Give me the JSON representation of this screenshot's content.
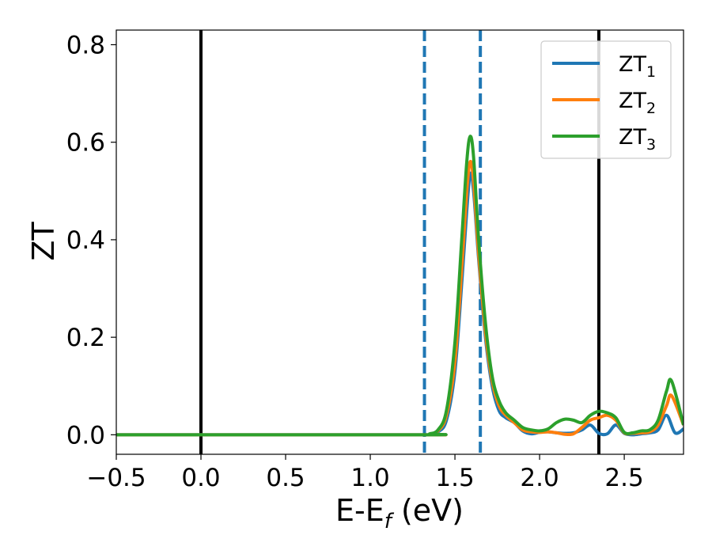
{
  "chart_data": {
    "type": "line",
    "xlabel": "E-E",
    "xlabel_sub": "f",
    "xlabel_unit": " (eV)",
    "ylabel": "ZT",
    "xlim": [
      -0.5,
      2.85
    ],
    "ylim": [
      -0.04,
      0.83
    ],
    "xticks": [
      -0.5,
      0.0,
      0.5,
      1.0,
      1.5,
      2.0,
      2.5
    ],
    "xtick_labels": [
      "−0.5",
      "0.0",
      "0.5",
      "1.0",
      "1.5",
      "2.0",
      "2.5"
    ],
    "yticks": [
      0.0,
      0.2,
      0.4,
      0.6,
      0.8
    ],
    "ytick_labels": [
      "0.0",
      "0.2",
      "0.4",
      "0.6",
      "0.8"
    ],
    "grid": false,
    "legend_position": "top-right",
    "vlines": [
      {
        "x": 0.0,
        "style": "solid",
        "color": "#000000"
      },
      {
        "x": 2.35,
        "style": "solid",
        "color": "#000000"
      },
      {
        "x": 1.32,
        "style": "dashed",
        "color": "#1f77b4"
      },
      {
        "x": 1.65,
        "style": "dashed",
        "color": "#1f77b4"
      }
    ],
    "series": [
      {
        "name": "ZT",
        "sub": "1",
        "color": "#1f77b4",
        "x": [
          -0.5,
          1.3,
          1.35,
          1.4,
          1.45,
          1.5,
          1.54,
          1.57,
          1.59,
          1.61,
          1.64,
          1.68,
          1.72,
          1.76,
          1.8,
          1.85,
          1.9,
          1.95,
          2.0,
          2.05,
          2.1,
          2.15,
          2.2,
          2.25,
          2.3,
          2.35,
          2.4,
          2.45,
          2.5,
          2.55,
          2.6,
          2.65,
          2.7,
          2.75,
          2.8,
          2.85
        ],
        "y": [
          0.0,
          0.0,
          0.001,
          0.006,
          0.03,
          0.13,
          0.31,
          0.46,
          0.535,
          0.5,
          0.36,
          0.2,
          0.1,
          0.05,
          0.035,
          0.025,
          0.008,
          0.002,
          0.005,
          0.006,
          0.004,
          0.003,
          0.004,
          0.01,
          0.02,
          0.003,
          0.002,
          0.02,
          0.003,
          0.0,
          0.002,
          0.004,
          0.01,
          0.04,
          0.004,
          0.012
        ]
      },
      {
        "name": "ZT",
        "sub": "2",
        "color": "#ff7f0e",
        "x": [
          -0.5,
          1.3,
          1.35,
          1.4,
          1.45,
          1.5,
          1.54,
          1.57,
          1.59,
          1.61,
          1.64,
          1.68,
          1.72,
          1.76,
          1.8,
          1.85,
          1.9,
          1.95,
          2.0,
          2.05,
          2.1,
          2.15,
          2.2,
          2.25,
          2.3,
          2.35,
          2.4,
          2.45,
          2.5,
          2.55,
          2.6,
          2.65,
          2.7,
          2.75,
          2.78,
          2.85
        ],
        "y": [
          0.0,
          0.0,
          0.001,
          0.008,
          0.04,
          0.15,
          0.34,
          0.5,
          0.56,
          0.52,
          0.37,
          0.21,
          0.11,
          0.06,
          0.04,
          0.025,
          0.01,
          0.006,
          0.005,
          0.006,
          0.004,
          0.001,
          0.002,
          0.015,
          0.03,
          0.035,
          0.04,
          0.03,
          0.004,
          0.003,
          0.004,
          0.006,
          0.02,
          0.06,
          0.08,
          0.02
        ]
      },
      {
        "name": "ZT",
        "sub": "3",
        "color": "#2ca02c",
        "x": [
          -0.5,
          1.3,
          1.35,
          1.4,
          1.45,
          1.5,
          1.54,
          1.57,
          1.59,
          1.61,
          1.64,
          1.68,
          1.72,
          1.76,
          1.8,
          1.85,
          1.9,
          1.95,
          2.0,
          2.05,
          2.1,
          2.15,
          2.2,
          2.25,
          2.3,
          2.35,
          2.4,
          2.45,
          2.5,
          2.55,
          2.6,
          2.65,
          2.7,
          2.75,
          2.78,
          2.85
        ],
        "y": [
          0.0,
          0.0,
          0.002,
          0.01,
          0.05,
          0.19,
          0.4,
          0.56,
          0.612,
          0.57,
          0.4,
          0.23,
          0.12,
          0.07,
          0.045,
          0.03,
          0.015,
          0.01,
          0.008,
          0.012,
          0.025,
          0.032,
          0.03,
          0.025,
          0.04,
          0.048,
          0.045,
          0.035,
          0.005,
          0.004,
          0.008,
          0.01,
          0.03,
          0.09,
          0.11,
          0.02
        ]
      }
    ]
  }
}
